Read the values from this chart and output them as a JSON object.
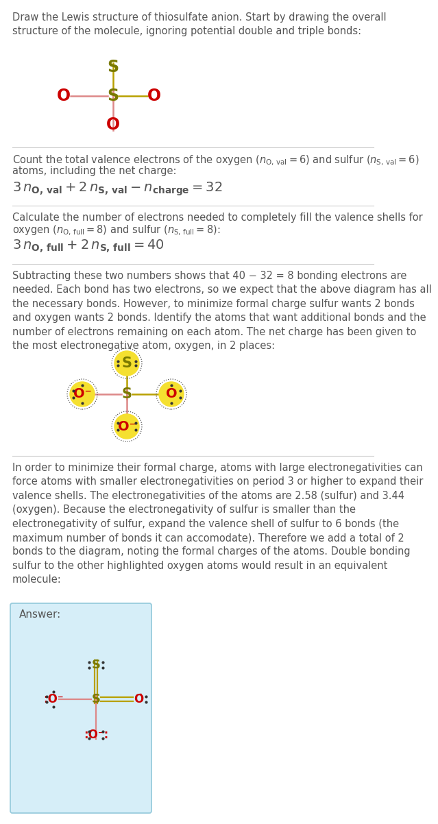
{
  "bg_color": "#ffffff",
  "text_color": "#555555",
  "sulfur_color": "#7a7a00",
  "oxygen_color": "#cc0000",
  "bond_yellow": "#b8a000",
  "bond_pink": "#dd8888",
  "highlight_fill": "#f5e030",
  "dot_color": "#333333",
  "divider_color": "#cccccc",
  "answer_box_color": "#d6eef8",
  "answer_box_edge": "#99ccdd",
  "title": "Draw the Lewis structure of thiosulfate anion. Start by drawing the overall\nstructure of the molecule, ignoring potential double and triple bonds:",
  "s2_line1": "Count the total valence electrons of the oxygen (",
  "s2_line2": "atoms, including the net charge:",
  "s3_line1": "Calculate the number of electrons needed to completely fill the valence shells for",
  "s3_line2": "oxygen (",
  "s4_para": "Subtracting these two numbers shows that 40 − 32 = 8 bonding electrons are\nneeded. Each bond has two electrons, so we expect that the above diagram has all\nthe necessary bonds. However, to minimize formal charge sulfur wants 2 bonds\nand oxygen wants 2 bonds. Identify the atoms that want additional bonds and the\nnumber of electrons remaining on each atom. The net charge has been given to\nthe most electronegative atom, oxygen, in 2 places:",
  "s5_para": "In order to minimize their formal charge, atoms with large electronegativities can\nforce atoms with smaller electronegativities on period 3 or higher to expand their\nvalence shells. The electronegativities of the atoms are 2.58 (sulfur) and 3.44\n(oxygen). Because the electronegativity of sulfur is smaller than the\nelectronegativity of sulfur, expand the valence shell of sulfur to 6 bonds (the\nmaximum number of bonds it can accomodate). Therefore we add a total of 2\nbonds to the diagram, noting the formal charges of the atoms. Double bonding\nsulfur to the other highlighted oxygen atoms would result in an equivalent\nmolecule:",
  "answer_label": "Answer:"
}
